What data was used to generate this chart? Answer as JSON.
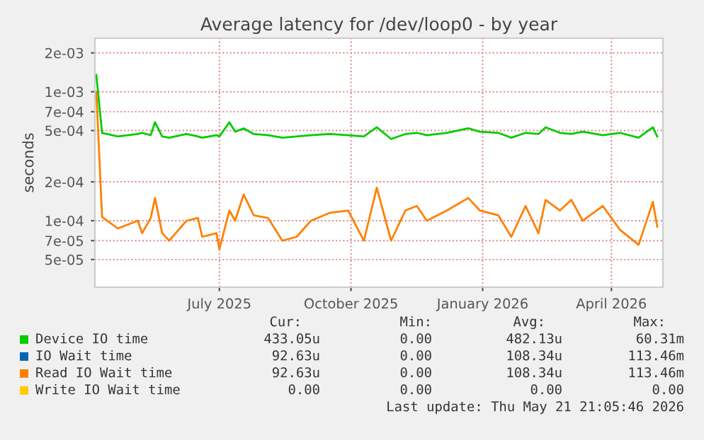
{
  "chart_data": {
    "type": "line",
    "title": "Average latency for /dev/loop0 - by year",
    "ylabel": "seconds",
    "x": [
      "2025-04-20",
      "2025-04-24",
      "2025-05-05",
      "2025-05-19",
      "2025-05-22",
      "2025-05-28",
      "2025-05-31",
      "2025-06-05",
      "2025-06-10",
      "2025-06-22",
      "2025-06-30",
      "2025-07-03",
      "2025-07-13",
      "2025-07-15",
      "2025-07-22",
      "2025-07-26",
      "2025-08-01",
      "2025-08-08",
      "2025-08-18",
      "2025-08-28",
      "2025-09-07",
      "2025-09-17",
      "2025-09-30",
      "2025-10-13",
      "2025-10-24",
      "2025-11-02",
      "2025-11-12",
      "2025-11-22",
      "2025-11-30",
      "2025-12-07",
      "2025-12-21",
      "2026-01-05",
      "2026-01-13",
      "2026-01-26",
      "2026-02-04",
      "2026-02-14",
      "2026-02-23",
      "2026-02-28",
      "2026-03-10",
      "2026-03-18",
      "2026-03-26",
      "2026-04-09",
      "2026-04-21",
      "2026-05-04",
      "2026-05-14",
      "2026-05-17"
    ],
    "series": [
      {
        "name": "Device IO time",
        "color": "#00cc00",
        "values": [
          0.00135,
          0.00048,
          0.00045,
          0.00047,
          0.00048,
          0.00046,
          0.00058,
          0.00045,
          0.00044,
          0.00047,
          0.00045,
          0.00044,
          0.00046,
          0.00045,
          0.00058,
          0.00049,
          0.00052,
          0.00047,
          0.00046,
          0.00044,
          0.00045,
          0.00046,
          0.00047,
          0.00046,
          0.00045,
          0.00053,
          0.00043,
          0.00047,
          0.00048,
          0.00046,
          0.00048,
          0.00052,
          0.00049,
          0.00048,
          0.00044,
          0.00048,
          0.00047,
          0.00053,
          0.00048,
          0.00047,
          0.00049,
          0.00046,
          0.00048,
          0.00044,
          0.00053,
          0.00045
        ]
      },
      {
        "name": "IO Wait time",
        "color": "#0066b3",
        "values": [
          null,
          null,
          null,
          null,
          null,
          null,
          null,
          null,
          null,
          null,
          null,
          null,
          null,
          null,
          null,
          null,
          null,
          null,
          null,
          null,
          null,
          null,
          null,
          null,
          null,
          null,
          null,
          null,
          null,
          null,
          null,
          null,
          null,
          null,
          null,
          null,
          null,
          null,
          null,
          null,
          null,
          null,
          null,
          null,
          null,
          null
        ]
      },
      {
        "name": "Read IO Wait time",
        "color": "#ff8000",
        "values": [
          0.001,
          0.000107,
          8.7e-05,
          0.0001,
          8e-05,
          0.000105,
          0.00015,
          8e-05,
          7e-05,
          0.0001,
          0.000105,
          7.5e-05,
          8e-05,
          6e-05,
          0.00012,
          0.0001,
          0.00016,
          0.00011,
          0.000105,
          7e-05,
          7.5e-05,
          0.0001,
          0.000115,
          0.00012,
          7e-05,
          0.00018,
          7e-05,
          0.00012,
          0.00013,
          0.0001,
          0.00012,
          0.00015,
          0.00012,
          0.00011,
          7.5e-05,
          0.00013,
          8e-05,
          0.000145,
          0.00012,
          0.000145,
          0.0001,
          0.00013,
          8.5e-05,
          6.5e-05,
          0.00014,
          9e-05
        ]
      },
      {
        "name": "Write IO Wait time",
        "color": "#ffcc00",
        "values": [
          null,
          null,
          null,
          null,
          null,
          null,
          null,
          null,
          null,
          null,
          null,
          null,
          null,
          null,
          null,
          null,
          null,
          null,
          null,
          null,
          null,
          null,
          null,
          null,
          null,
          null,
          null,
          null,
          null,
          null,
          null,
          null,
          null,
          null,
          null,
          null,
          null,
          null,
          null,
          null,
          null,
          null,
          null,
          null,
          null,
          null
        ]
      }
    ],
    "log": "y",
    "ylim": [
      3.05e-05,
      0.0026
    ],
    "yticks": [
      {
        "value": 0.002,
        "label": "2e-03"
      },
      {
        "value": 0.001,
        "label": "1e-03"
      },
      {
        "value": 0.0007,
        "label": "7e-04"
      },
      {
        "value": 0.0005,
        "label": "5e-04"
      },
      {
        "value": 0.0002,
        "label": "2e-04"
      },
      {
        "value": 0.0001,
        "label": "1e-04"
      },
      {
        "value": 7e-05,
        "label": "7e-05"
      },
      {
        "value": 5e-05,
        "label": "5e-05"
      }
    ],
    "xlim": [
      "2025-04-19",
      "2026-05-21"
    ],
    "xticks": [
      {
        "value": "2025-07-15",
        "label": "July 2025"
      },
      {
        "value": "2025-10-15",
        "label": "October 2025"
      },
      {
        "value": "2026-01-15",
        "label": "January 2026"
      },
      {
        "value": "2026-04-15",
        "label": "April 2026"
      }
    ],
    "grid": true,
    "legend": "bottom",
    "marker": "none",
    "line_style": "solid",
    "annotations": [
      "Cur:",
      "Min:",
      "Avg:",
      "Max:",
      "433.05u",
      "0.00",
      "482.13u",
      "60.31m",
      "92.63u",
      "0.00",
      "108.34u",
      "113.46m",
      "92.63u",
      "0.00",
      "108.34u",
      "113.46m",
      "0.00",
      "0.00",
      "0.00",
      "0.00",
      "Last update: Thu May 21 21:05:46 2026"
    ]
  }
}
